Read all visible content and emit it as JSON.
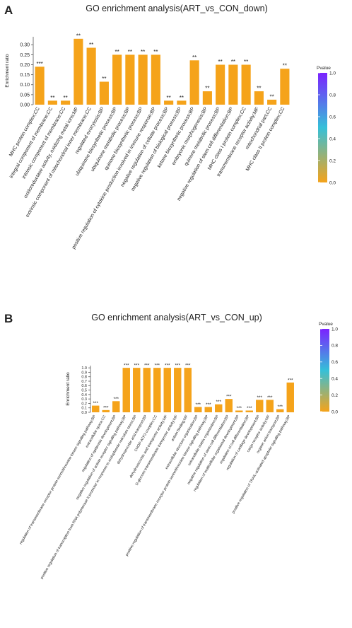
{
  "chart_data": [
    {
      "type": "bar",
      "panel_label": "A",
      "title": "GO enrichment analysis(ART_vs_CON_down)",
      "y_label": "Enrichment ratio",
      "categories": [
        "MHC protein complex;CC",
        "integral component of membrane;CC",
        "intrinsic component of membrane;CC",
        "oxidoreductase activity, oxidizing metal ions;MF",
        "extrinsic component of mitochondrial inner membrane;CC",
        "regulated exocytosis;BP",
        "ubiquinone biosynthetic process;BP",
        "ubiquinone metabolic process;BP",
        "quinone biosynthetic process;BP",
        "positive regulation of cytokine production involved in immune response;BP",
        "negative regulation of cellular process;BP",
        "negative regulation of biological process;BP",
        "ketone biosynthetic process;BP",
        "embryonic morphogenesis;BP",
        "quinone metabolic process;BP",
        "negative regulation of stem cell differentiation;BP",
        "MHC class I protein complex;CC",
        "transmembrane receptor activity;MF",
        "mitochondrial part;CC",
        "MHC class II protein complex;CC"
      ],
      "values": [
        0.19,
        0.02,
        0.02,
        0.33,
        0.285,
        0.115,
        0.25,
        0.25,
        0.25,
        0.25,
        0.02,
        0.02,
        0.222,
        0.067,
        0.2,
        0.2,
        0.2,
        0.067,
        0.025,
        0.18
      ],
      "value_labels": [
        "***",
        "**",
        "**",
        "**",
        "**",
        "**",
        "**",
        "**",
        "**",
        "**",
        "**",
        "**",
        "**",
        "**",
        "**",
        "**",
        "**",
        "**",
        "**",
        "**"
      ],
      "color": "#f5a31a",
      "ylim": [
        0,
        0.34
      ],
      "yticks": [
        {
          "value": 0,
          "label": "0.00"
        },
        {
          "value": 0.05,
          "label": "0.05"
        },
        {
          "value": 0.1,
          "label": "0.10"
        },
        {
          "value": 0.15,
          "label": "0.15"
        },
        {
          "value": 0.2,
          "label": "0.20"
        },
        {
          "value": 0.25,
          "label": "0.25"
        },
        {
          "value": 0.3,
          "label": "0.30"
        }
      ],
      "colorbar": {
        "title": "Pvalue",
        "lim": [
          0,
          1
        ],
        "colors": [
          "#f5a31a",
          "#35c0d8",
          "#7b22ff"
        ],
        "ticks": [
          {
            "value": 0,
            "label": "0.0"
          },
          {
            "value": 0.2,
            "label": "0.2"
          },
          {
            "value": 0.4,
            "label": "0.4"
          },
          {
            "value": 0.6,
            "label": "0.6"
          },
          {
            "value": 0.8,
            "label": "0.8"
          },
          {
            "value": 1,
            "label": "1.0"
          }
        ]
      }
    },
    {
      "type": "bar",
      "panel_label": "B",
      "title": "GO enrichment analysis(ART_vs_CON_up)",
      "y_label": "Enrichment ratio",
      "categories": [
        "regulation of transmembrane receptor protein serine/threonine kinase signaling pathway;BP",
        "extracellular space;CC",
        "regulation of epidermis development;BP",
        "negative regulation of activin receptor signaling pathway;BP",
        "positive regulation of transcription from RNA polymerase II promoter in response to endoplasmic reticulum stress;BP",
        "dehydroascorbic acid transport;BP",
        "CHOP-ATF3 complex;CC",
        "dehydroascorbic acid transporter activity;MF",
        "D-glucose transmembrane transporter activity;MF",
        "activin binding;MF",
        "extracellular structure organization;BP",
        "positive regulation of transmembrane receptor protein serine/threonine kinase signaling pathway;BP",
        "extracellular matrix organization;BP",
        "negative regulation of stem cell differentiation;BP",
        "regulation of multicellular organismal development;BP",
        "regulation of cell differentiation;BP",
        "regulation of cartilage development;BP",
        "cargo receptor activity;MF",
        "organic anion transport;BP",
        "positive regulation of TRAIL-activated apoptotic signaling pathway;BP"
      ],
      "values": [
        0.15,
        0.05,
        0.25,
        1.0,
        1.0,
        1.0,
        1.0,
        1.0,
        1.0,
        1.0,
        0.12,
        0.12,
        0.18,
        0.3,
        0.04,
        0.04,
        0.28,
        0.28,
        0.07,
        0.67
      ],
      "value_labels": [
        "***",
        "***",
        "***",
        "***",
        "***",
        "***",
        "***",
        "***",
        "***",
        "***",
        "***",
        "***",
        "***",
        "***",
        "***",
        "***",
        "***",
        "***",
        "***",
        "***"
      ],
      "color": "#f5a31a",
      "ylim": [
        0,
        1.05
      ],
      "yticks": [
        {
          "value": 0,
          "label": "0.0"
        },
        {
          "value": 0.1,
          "label": "0.1"
        },
        {
          "value": 0.2,
          "label": "0.2"
        },
        {
          "value": 0.3,
          "label": "0.3"
        },
        {
          "value": 0.4,
          "label": "0.4"
        },
        {
          "value": 0.5,
          "label": "0.5"
        },
        {
          "value": 0.6,
          "label": "0.6"
        },
        {
          "value": 0.7,
          "label": "0.7"
        },
        {
          "value": 0.8,
          "label": "0.8"
        },
        {
          "value": 0.9,
          "label": "0.9"
        },
        {
          "value": 1,
          "label": "1.0"
        }
      ],
      "colorbar": {
        "title": "Pvalue",
        "lim": [
          0,
          1
        ],
        "colors": [
          "#f5a31a",
          "#35c0d8",
          "#7b22ff"
        ],
        "ticks": [
          {
            "value": 0,
            "label": "0.0"
          },
          {
            "value": 0.2,
            "label": "0.2"
          },
          {
            "value": 0.4,
            "label": "0.4"
          },
          {
            "value": 0.6,
            "label": "0.6"
          },
          {
            "value": 0.8,
            "label": "0.8"
          },
          {
            "value": 1,
            "label": "1.0"
          }
        ]
      }
    }
  ]
}
